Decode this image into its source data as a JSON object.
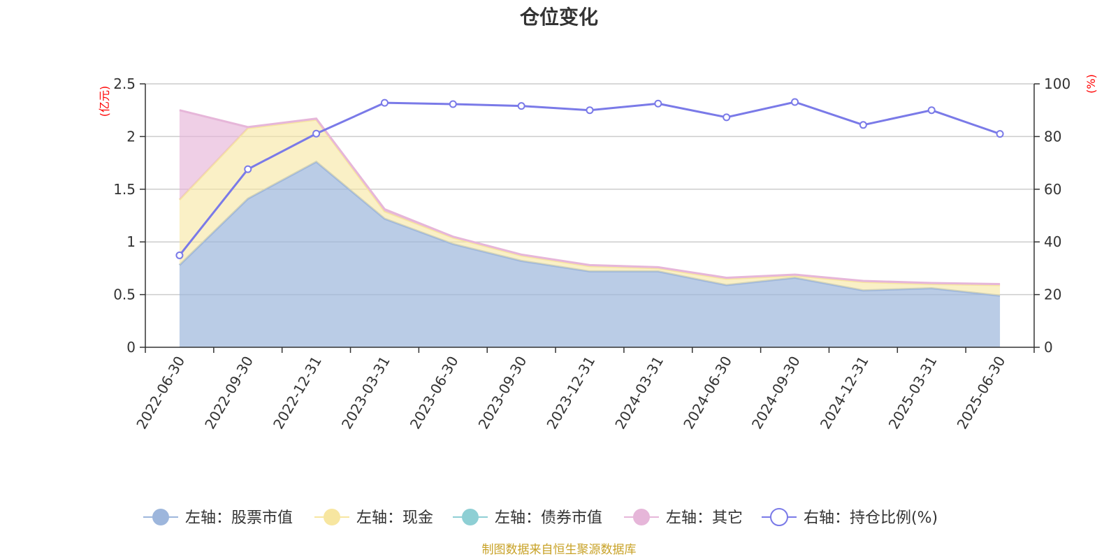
{
  "title": "仓位变化",
  "source_text": "制图数据来自恒生聚源数据库",
  "colors": {
    "stock": "#9db6dc",
    "cash": "#f7e6a0",
    "bond": "#8ecfd4",
    "other": "#e6b6d9",
    "ratio": "#7a7ae8",
    "unit_red": "#ff0000"
  },
  "chart_data": {
    "type": "area",
    "title": "仓位变化",
    "x": [
      "2022-06-30",
      "2022-09-30",
      "2022-12-31",
      "2023-03-31",
      "2023-06-30",
      "2023-09-30",
      "2023-12-31",
      "2024-03-31",
      "2024-06-30",
      "2024-09-30",
      "2024-12-31",
      "2025-03-31",
      "2025-06-30"
    ],
    "left_axis": {
      "unit": "(亿元)",
      "ylim": [
        0,
        2.5
      ],
      "ticks": [
        "0",
        "0.5",
        "1",
        "1.5",
        "2",
        "2.5"
      ]
    },
    "right_axis": {
      "unit": "(%)",
      "ylim": [
        0,
        100
      ],
      "ticks": [
        "0",
        "20",
        "40",
        "60",
        "80",
        "100"
      ]
    },
    "series": [
      {
        "name": "左轴：股票市值",
        "axis": "left",
        "stacked": true,
        "type": "area",
        "values": [
          0.78,
          1.41,
          1.76,
          1.22,
          0.98,
          0.82,
          0.72,
          0.72,
          0.59,
          0.66,
          0.54,
          0.56,
          0.49
        ]
      },
      {
        "name": "左轴：现金",
        "axis": "left",
        "stacked": true,
        "type": "area",
        "values": [
          0.62,
          0.67,
          0.4,
          0.07,
          0.06,
          0.05,
          0.05,
          0.03,
          0.06,
          0.02,
          0.08,
          0.04,
          0.1
        ]
      },
      {
        "name": "左轴：债券市值",
        "axis": "left",
        "stacked": true,
        "type": "area",
        "values": [
          0,
          0,
          0,
          0,
          0,
          0,
          0,
          0,
          0,
          0,
          0,
          0,
          0
        ]
      },
      {
        "name": "左轴：其它",
        "axis": "left",
        "stacked": true,
        "type": "area",
        "values": [
          0.85,
          0.01,
          0.01,
          0.02,
          0.01,
          0.01,
          0.01,
          0.01,
          0.01,
          0.01,
          0.01,
          0.01,
          0.01
        ]
      },
      {
        "name": "右轴：持仓比例(%)",
        "axis": "right",
        "type": "line",
        "values": [
          34.9,
          67.6,
          81.1,
          92.8,
          92.3,
          91.6,
          90.0,
          92.5,
          87.3,
          93.1,
          84.4,
          90.0,
          81.0
        ]
      }
    ],
    "grid": true,
    "legend_position": "bottom"
  }
}
